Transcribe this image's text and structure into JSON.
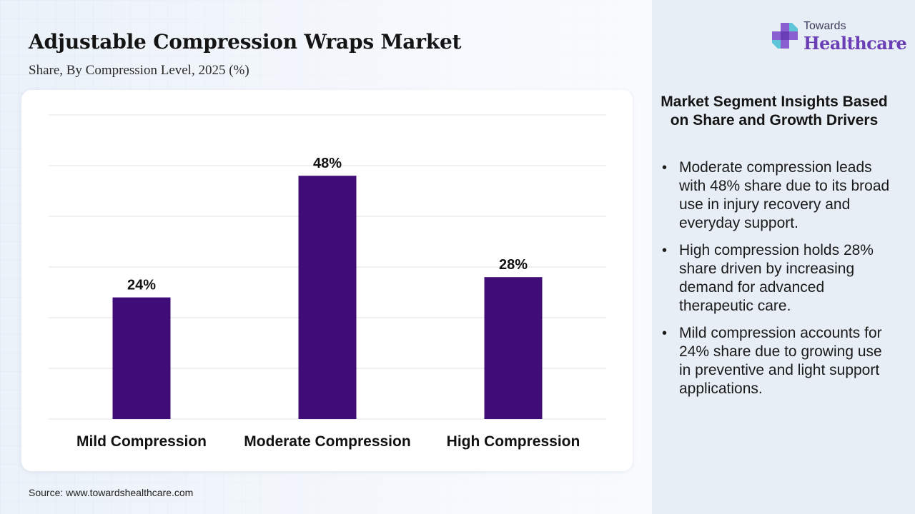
{
  "title": "Adjustable Compression Wraps Market",
  "subtitle": "Share, By Compression Level, 2025 (%)",
  "source": "Source: www.towardshealthcare.com",
  "logo": {
    "top": "Towards",
    "bottom": "Healthcare",
    "icon": "medical-cross-icon"
  },
  "colors": {
    "bar": "#3f0c78",
    "logo_accent": "#6a3fb5"
  },
  "insights": {
    "title": "Market Segment Insights Based on Share and Growth Drivers",
    "items": [
      "Moderate compression leads with 48% share due to its broad use in injury recovery and everyday support.",
      "High compression holds 28% share driven by increasing demand for advanced therapeutic care.",
      "Mild compression accounts for 24% share due to growing use in preventive and light support applications."
    ]
  },
  "chart_data": {
    "type": "bar",
    "categories": [
      "Mild Compression",
      "Moderate Compression",
      "High Compression"
    ],
    "values": [
      24,
      48,
      28
    ],
    "value_labels": [
      "24%",
      "48%",
      "28%"
    ],
    "ylim": [
      0,
      60
    ],
    "grid": true,
    "legend": "none"
  }
}
